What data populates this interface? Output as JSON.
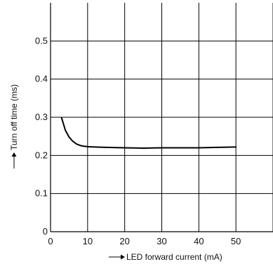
{
  "chart_data": {
    "type": "line",
    "title": "",
    "xlabel": "LED forward current (mA)",
    "ylabel": "Turn off time (ms)",
    "xlim": [
      0,
      60
    ],
    "ylim": [
      0,
      0.6
    ],
    "x_ticks": [
      0,
      10,
      20,
      30,
      40,
      50
    ],
    "y_ticks": [
      0,
      0.1,
      0.2,
      0.3,
      0.4,
      0.5
    ],
    "x_tick_labels": [
      "0",
      "10",
      "20",
      "30",
      "40",
      "50"
    ],
    "y_tick_labels": [
      "0",
      "0.1",
      "0.2",
      "0.3",
      "0.4",
      "0.5"
    ],
    "grid": true,
    "legend": "none",
    "line_color": "#000000",
    "series": [
      {
        "x": [
          3,
          4,
          5,
          6,
          7,
          8,
          9,
          10,
          12,
          15,
          20,
          25,
          30,
          35,
          40,
          45,
          50
        ],
        "y": [
          0.298,
          0.266,
          0.248,
          0.237,
          0.23,
          0.226,
          0.224,
          0.223,
          0.222,
          0.221,
          0.22,
          0.219,
          0.22,
          0.22,
          0.22,
          0.221,
          0.222
        ]
      }
    ]
  }
}
